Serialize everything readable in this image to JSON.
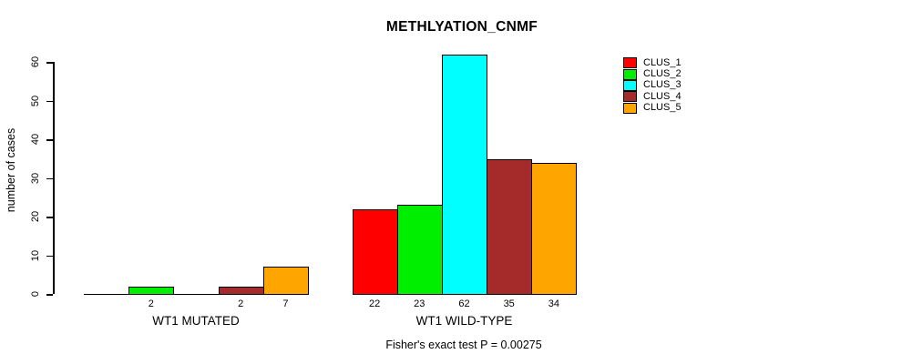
{
  "chart_data": {
    "type": "bar",
    "title": "METHLYATION_CNMF",
    "ylabel": "number of cases",
    "xlabel": "",
    "ylim": [
      0,
      62
    ],
    "yticks": [
      0,
      10,
      20,
      30,
      40,
      50,
      60
    ],
    "grid": false,
    "legend_position": "right-outside",
    "categories": [
      "WT1 MUTATED",
      "WT1 WILD-TYPE"
    ],
    "series": [
      {
        "name": "CLUS_1",
        "color": "#FF0000",
        "values": [
          0,
          22
        ]
      },
      {
        "name": "CLUS_2",
        "color": "#00EE00",
        "values": [
          2,
          23
        ]
      },
      {
        "name": "CLUS_3",
        "color": "#00FFFF",
        "values": [
          0,
          62
        ]
      },
      {
        "name": "CLUS_4",
        "color": "#A52A2A",
        "values": [
          2,
          35
        ]
      },
      {
        "name": "CLUS_5",
        "color": "#FFA500",
        "values": [
          7,
          34
        ]
      }
    ],
    "bar_value_labels": [
      [
        "",
        "2",
        "",
        "2",
        "7"
      ],
      [
        "22",
        "23",
        "62",
        "35",
        "34"
      ]
    ],
    "annotation": "Fisher's exact test P = 0.00275"
  }
}
